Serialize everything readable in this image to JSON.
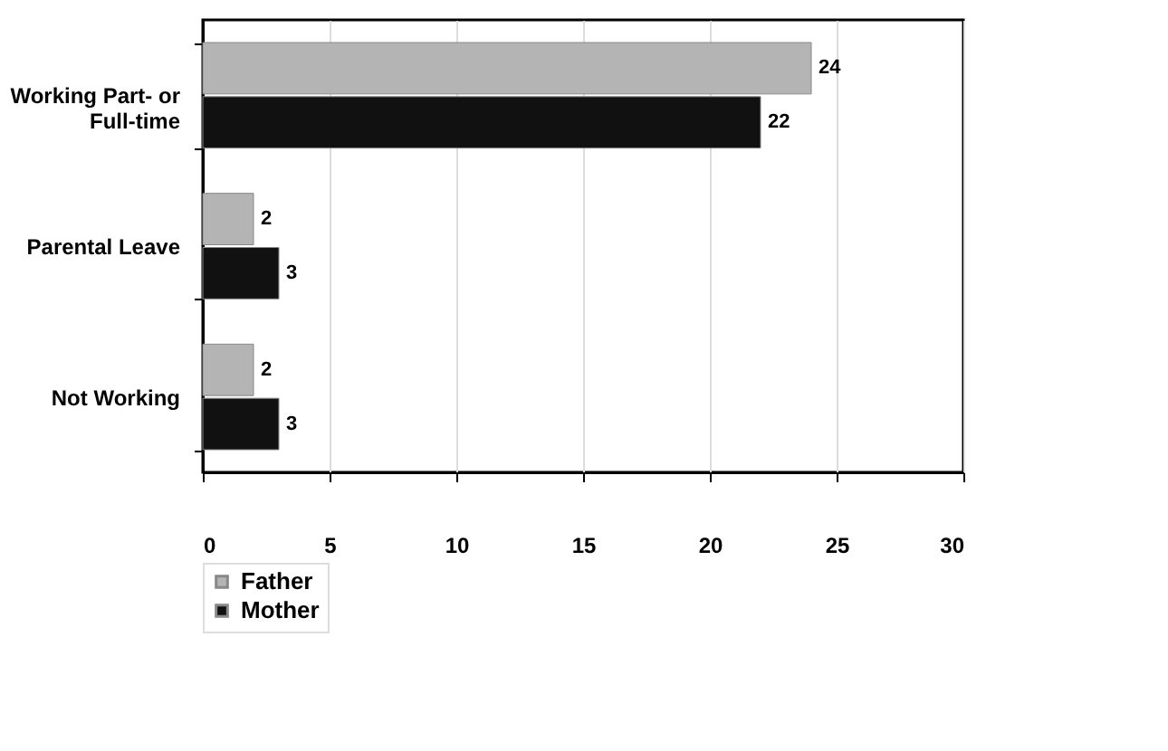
{
  "chart_data": {
    "type": "bar",
    "orientation": "horizontal",
    "categories": [
      "Working Part- or\nFull-time",
      "Parental Leave",
      "Not Working"
    ],
    "series": [
      {
        "name": "Father",
        "color": "#b4b4b4",
        "values": [
          24,
          2,
          2
        ]
      },
      {
        "name": "Mother",
        "color": "#111111",
        "values": [
          22,
          3,
          3
        ]
      }
    ],
    "xlim": [
      0,
      30
    ],
    "xticks": [
      0,
      5,
      10,
      15,
      20,
      25,
      30
    ],
    "grid": "x",
    "legend": "bottom",
    "data_labels": true
  }
}
